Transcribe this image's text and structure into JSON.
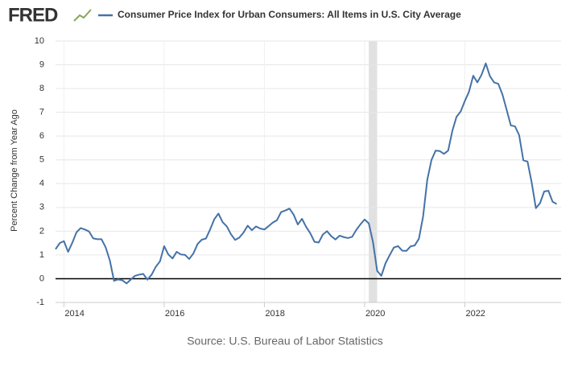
{
  "logo": "FRED",
  "chart_data": {
    "type": "line",
    "title": "Consumer Price Index for Urban Consumers: All Items in U.S. City Average",
    "y_label": "Percent Change from Year Ago",
    "source": "Source: U.S. Bureau of Labor Statistics",
    "x": [
      2013.833,
      2013.917,
      2014.0,
      2014.083,
      2014.167,
      2014.25,
      2014.333,
      2014.417,
      2014.5,
      2014.583,
      2014.667,
      2014.75,
      2014.833,
      2014.917,
      2015.0,
      2015.083,
      2015.167,
      2015.25,
      2015.333,
      2015.417,
      2015.5,
      2015.583,
      2015.667,
      2015.75,
      2015.833,
      2015.917,
      2016.0,
      2016.083,
      2016.167,
      2016.25,
      2016.333,
      2016.417,
      2016.5,
      2016.583,
      2016.667,
      2016.75,
      2016.833,
      2016.917,
      2017.0,
      2017.083,
      2017.167,
      2017.25,
      2017.333,
      2017.417,
      2017.5,
      2017.583,
      2017.667,
      2017.75,
      2017.833,
      2017.917,
      2018.0,
      2018.083,
      2018.167,
      2018.25,
      2018.333,
      2018.417,
      2018.5,
      2018.583,
      2018.667,
      2018.75,
      2018.833,
      2018.917,
      2019.0,
      2019.083,
      2019.167,
      2019.25,
      2019.333,
      2019.417,
      2019.5,
      2019.583,
      2019.667,
      2019.75,
      2019.833,
      2019.917,
      2020.0,
      2020.083,
      2020.167,
      2020.25,
      2020.333,
      2020.417,
      2020.5,
      2020.583,
      2020.667,
      2020.75,
      2020.833,
      2020.917,
      2021.0,
      2021.083,
      2021.167,
      2021.25,
      2021.333,
      2021.417,
      2021.5,
      2021.583,
      2021.667,
      2021.75,
      2021.833,
      2021.917,
      2022.0,
      2022.083,
      2022.167,
      2022.25,
      2022.333,
      2022.417,
      2022.5,
      2022.583,
      2022.667,
      2022.75,
      2022.833,
      2022.917,
      2023.0,
      2023.083,
      2023.167,
      2023.25,
      2023.333,
      2023.417,
      2023.5,
      2023.583,
      2023.667,
      2023.75,
      2023.833
    ],
    "series": [
      {
        "name": "Consumer Price Index for Urban Consumers: All Items in U.S. City Average",
        "color": "#4572a7",
        "values": [
          1.24,
          1.5,
          1.58,
          1.13,
          1.51,
          1.95,
          2.13,
          2.07,
          1.99,
          1.7,
          1.66,
          1.66,
          1.32,
          0.76,
          -0.09,
          -0.03,
          -0.07,
          -0.2,
          -0.04,
          0.12,
          0.17,
          0.2,
          -0.04,
          0.17,
          0.5,
          0.73,
          1.37,
          1.02,
          0.85,
          1.13,
          1.02,
          1.0,
          0.83,
          1.06,
          1.46,
          1.64,
          1.69,
          2.07,
          2.5,
          2.74,
          2.38,
          2.2,
          1.87,
          1.63,
          1.73,
          1.94,
          2.23,
          2.04,
          2.2,
          2.11,
          2.07,
          2.21,
          2.36,
          2.46,
          2.8,
          2.87,
          2.95,
          2.7,
          2.28,
          2.52,
          2.18,
          1.91,
          1.55,
          1.52,
          1.86,
          2.0,
          1.79,
          1.65,
          1.81,
          1.75,
          1.71,
          1.76,
          2.05,
          2.29,
          2.49,
          2.33,
          1.54,
          0.33,
          0.12,
          0.65,
          0.99,
          1.31,
          1.37,
          1.18,
          1.17,
          1.36,
          1.4,
          1.68,
          2.62,
          4.16,
          4.99,
          5.39,
          5.37,
          5.25,
          5.39,
          6.22,
          6.81,
          7.04,
          7.48,
          7.87,
          8.54,
          8.26,
          8.58,
          9.06,
          8.52,
          8.26,
          8.2,
          7.75,
          7.11,
          6.45,
          6.41,
          6.04,
          4.98,
          4.93,
          4.05,
          2.97,
          3.18,
          3.67,
          3.7,
          3.24,
          3.14
        ]
      }
    ],
    "xlim": [
      2013.833,
      2023.92
    ],
    "xticks": [
      2014,
      2016,
      2018,
      2020,
      2022
    ],
    "ylim": [
      -1,
      10
    ],
    "yticks": [
      -1,
      0,
      1,
      2,
      3,
      4,
      5,
      6,
      7,
      8,
      9,
      10
    ],
    "recessions": [
      [
        2020.083,
        2020.25
      ]
    ],
    "grid": true
  }
}
